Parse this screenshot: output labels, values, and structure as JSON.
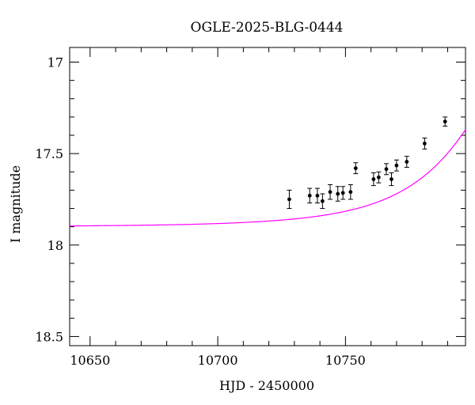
{
  "chart_data": {
    "type": "scatter",
    "title": "OGLE-2025-BLG-0444",
    "xlabel": "HJD - 2450000",
    "ylabel": "I magnitude",
    "xlim": [
      10642,
      10797
    ],
    "ylim": [
      18.55,
      16.92
    ],
    "y_inverted": true,
    "x_ticks_major": [
      10650,
      10700,
      10750
    ],
    "x_tick_labels": [
      "10650",
      "10700",
      "10750"
    ],
    "x_ticks_minor_step": 10,
    "y_ticks_major": [
      17,
      17.5,
      18,
      18.5
    ],
    "y_tick_labels": [
      "17",
      "17.5",
      "18",
      "18.5"
    ],
    "y_ticks_minor_step": 0.1,
    "grid": false,
    "legend": "none",
    "series": [
      {
        "kind": "points-with-errorbars",
        "color": "#000000",
        "points": [
          {
            "x": 10728,
            "y": 17.75,
            "err": 0.05
          },
          {
            "x": 10736,
            "y": 17.73,
            "err": 0.04
          },
          {
            "x": 10739,
            "y": 17.73,
            "err": 0.04
          },
          {
            "x": 10741,
            "y": 17.76,
            "err": 0.04
          },
          {
            "x": 10744,
            "y": 17.71,
            "err": 0.04
          },
          {
            "x": 10747,
            "y": 17.72,
            "err": 0.04
          },
          {
            "x": 10749,
            "y": 17.715,
            "err": 0.035
          },
          {
            "x": 10752,
            "y": 17.71,
            "err": 0.04
          },
          {
            "x": 10754,
            "y": 17.58,
            "err": 0.03
          },
          {
            "x": 10761,
            "y": 17.64,
            "err": 0.035
          },
          {
            "x": 10763,
            "y": 17.63,
            "err": 0.03
          },
          {
            "x": 10766,
            "y": 17.585,
            "err": 0.03
          },
          {
            "x": 10768,
            "y": 17.64,
            "err": 0.035
          },
          {
            "x": 10770,
            "y": 17.565,
            "err": 0.03
          },
          {
            "x": 10774,
            "y": 17.545,
            "err": 0.03
          },
          {
            "x": 10781,
            "y": 17.445,
            "err": 0.03
          },
          {
            "x": 10789,
            "y": 17.325,
            "err": 0.025
          }
        ]
      },
      {
        "kind": "model-curve",
        "color": "#ff00ff",
        "model": {
          "t0": 10820,
          "tE": 40,
          "u0": 0.45,
          "I_base": 17.9
        }
      }
    ]
  }
}
